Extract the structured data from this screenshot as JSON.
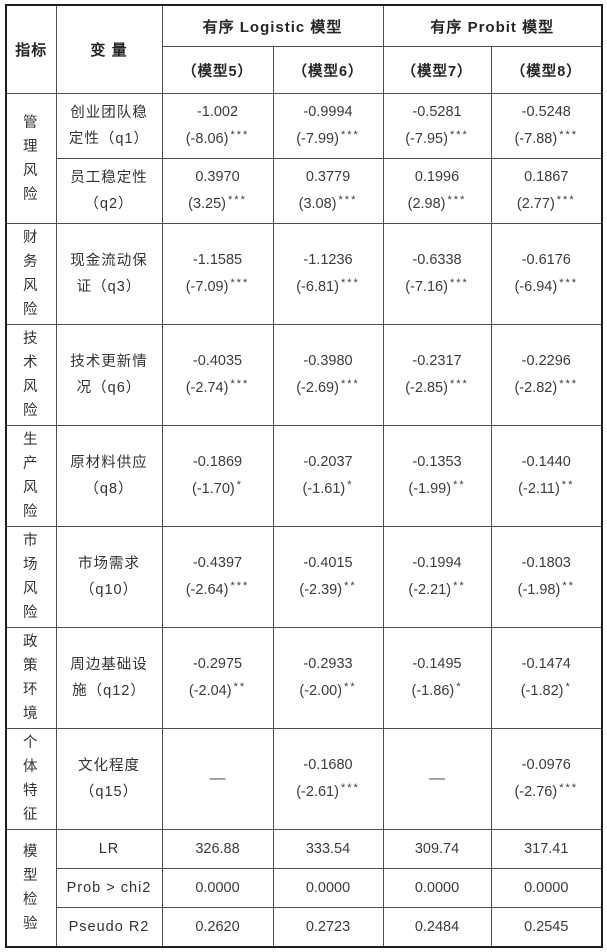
{
  "table": {
    "header": {
      "col_indicator": "指标",
      "col_variable": "变 量",
      "group_logistic": "有序 Logistic 模型",
      "group_probit": "有序 Probit 模型",
      "model_labels": [
        "（模型5）",
        "（模型6）",
        "（模型7）",
        "（模型8）"
      ]
    },
    "groups": [
      {
        "indicator": "管理风险",
        "variables": [
          {
            "name": "创业团队稳定性（q1）",
            "cells": [
              {
                "coef": "-1.002",
                "t": "(-8.06)",
                "stars": "***"
              },
              {
                "coef": "-0.9994",
                "t": "(-7.99)",
                "stars": "***"
              },
              {
                "coef": "-0.5281",
                "t": "(-7.95)",
                "stars": "***"
              },
              {
                "coef": "-0.5248",
                "t": "(-7.88)",
                "stars": "***"
              }
            ]
          },
          {
            "name": "员工稳定性（q2）",
            "cells": [
              {
                "coef": "0.3970",
                "t": "(3.25)",
                "stars": "***"
              },
              {
                "coef": "0.3779",
                "t": "(3.08)",
                "stars": "***"
              },
              {
                "coef": "0.1996",
                "t": "(2.98)",
                "stars": "***"
              },
              {
                "coef": "0.1867",
                "t": "(2.77)",
                "stars": "***"
              }
            ]
          }
        ]
      },
      {
        "indicator": "财务风险",
        "variables": [
          {
            "name": "现金流动保证（q3）",
            "cells": [
              {
                "coef": "-1.1585",
                "t": "(-7.09)",
                "stars": "***"
              },
              {
                "coef": "-1.1236",
                "t": "(-6.81)",
                "stars": "***"
              },
              {
                "coef": "-0.6338",
                "t": "(-7.16)",
                "stars": "***"
              },
              {
                "coef": "-0.6176",
                "t": "(-6.94)",
                "stars": "***"
              }
            ]
          }
        ]
      },
      {
        "indicator": "技术风险",
        "variables": [
          {
            "name": "技术更新情况（q6）",
            "cells": [
              {
                "coef": "-0.4035",
                "t": "(-2.74)",
                "stars": "***"
              },
              {
                "coef": "-0.3980",
                "t": "(-2.69)",
                "stars": "***"
              },
              {
                "coef": "-0.2317",
                "t": "(-2.85)",
                "stars": "***"
              },
              {
                "coef": "-0.2296",
                "t": "(-2.82)",
                "stars": "***"
              }
            ]
          }
        ]
      },
      {
        "indicator": "生产风险",
        "variables": [
          {
            "name": "原材料供应（q8）",
            "cells": [
              {
                "coef": "-0.1869",
                "t": "(-1.70)",
                "stars": "*"
              },
              {
                "coef": "-0.2037",
                "t": "(-1.61)",
                "stars": "*"
              },
              {
                "coef": "-0.1353",
                "t": "(-1.99)",
                "stars": "**"
              },
              {
                "coef": "-0.1440",
                "t": "(-2.11)",
                "stars": "**"
              }
            ]
          }
        ]
      },
      {
        "indicator": "市场风险",
        "variables": [
          {
            "name": "市场需求（q10）",
            "cells": [
              {
                "coef": "-0.4397",
                "t": "(-2.64)",
                "stars": "***"
              },
              {
                "coef": "-0.4015",
                "t": "(-2.39)",
                "stars": "**"
              },
              {
                "coef": "-0.1994",
                "t": "(-2.21)",
                "stars": "**"
              },
              {
                "coef": "-0.1803",
                "t": "(-1.98)",
                "stars": "**"
              }
            ]
          }
        ]
      },
      {
        "indicator": "政策环境",
        "variables": [
          {
            "name": "周边基础设施（q12）",
            "cells": [
              {
                "coef": "-0.2975",
                "t": "(-2.04)",
                "stars": "**"
              },
              {
                "coef": "-0.2933",
                "t": "(-2.00)",
                "stars": "**"
              },
              {
                "coef": "-0.1495",
                "t": "(-1.86)",
                "stars": "*"
              },
              {
                "coef": "-0.1474",
                "t": "(-1.82)",
                "stars": "*"
              }
            ]
          }
        ]
      },
      {
        "indicator": "个体特征",
        "variables": [
          {
            "name": "文化程度（q15）",
            "cells": [
              {
                "dash": "—"
              },
              {
                "coef": "-0.1680",
                "t": "(-2.61)",
                "stars": "***"
              },
              {
                "dash": "—"
              },
              {
                "coef": "-0.0976",
                "t": "(-2.76)",
                "stars": "***"
              }
            ]
          }
        ]
      }
    ],
    "stats": {
      "indicator": "模型检验",
      "rows": [
        {
          "label": "LR",
          "values": [
            "326.88",
            "333.54",
            "309.74",
            "317.41"
          ]
        },
        {
          "label": "Prob > chi2",
          "values": [
            "0.0000",
            "0.0000",
            "0.0000",
            "0.0000"
          ]
        },
        {
          "label": "Pseudo R2",
          "values": [
            "0.2620",
            "0.2723",
            "0.2484",
            "0.2545"
          ]
        }
      ]
    }
  }
}
